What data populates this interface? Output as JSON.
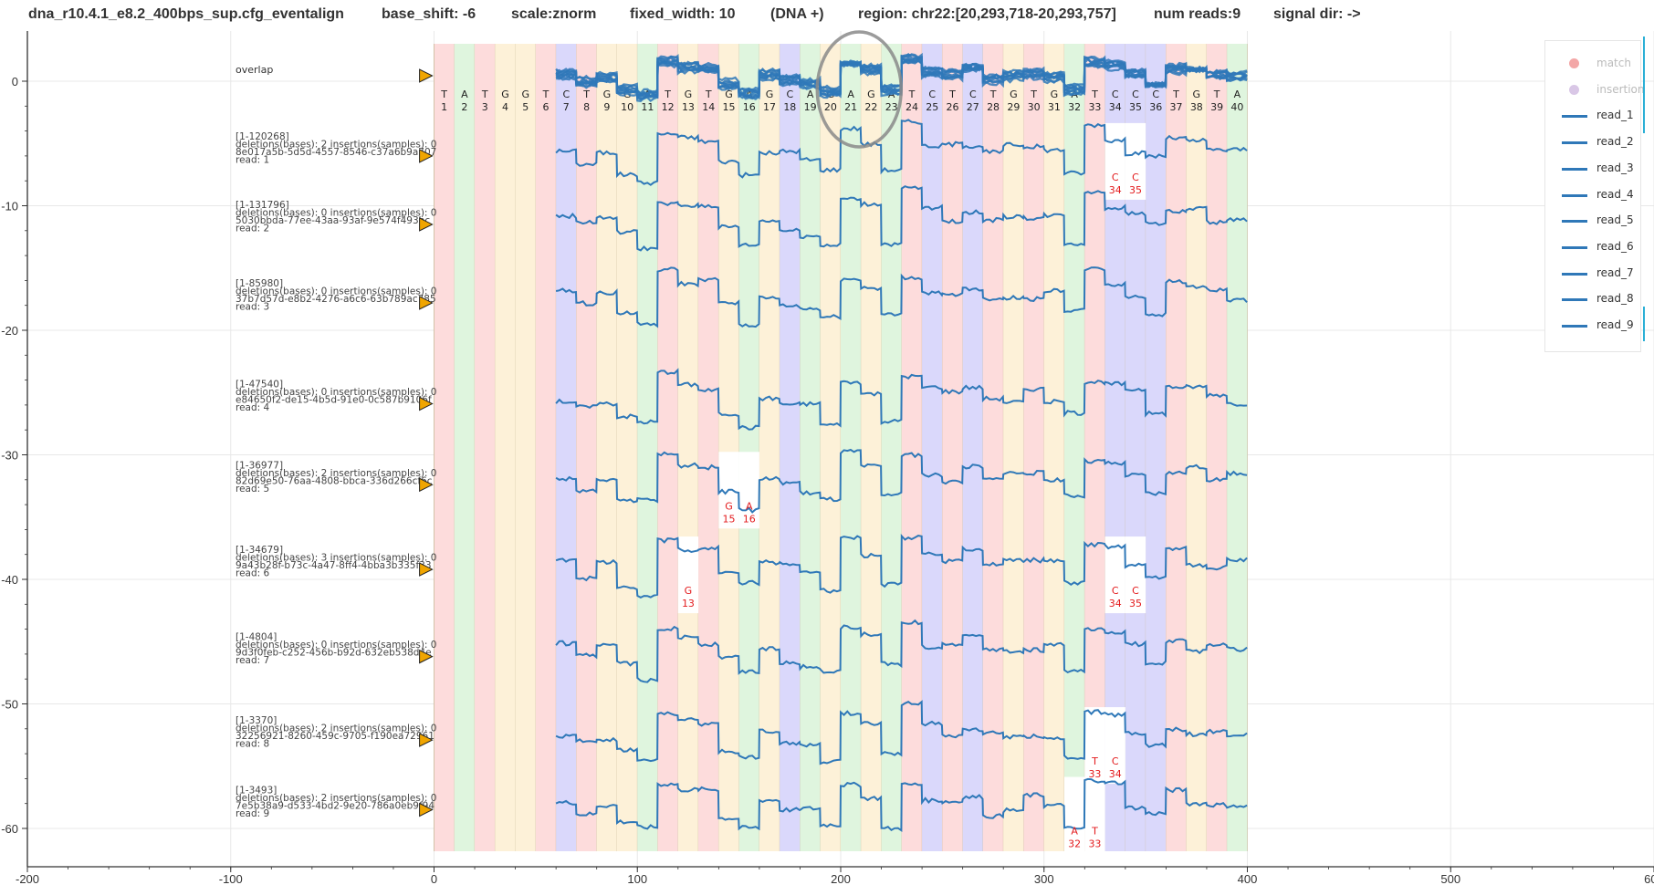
{
  "header": {
    "config": "dna_r10.4.1_e8.2_400bps_sup.cfg_eventalign",
    "base_shift": "base_shift: -6",
    "scale": "scale:znorm",
    "fixed_width": "fixed_width: 10",
    "strand": "(DNA +)",
    "region": "region: chr22:[20,293,718-20,293,757]",
    "num_reads": "num reads:9",
    "signal_dir": "signal dir: ->"
  },
  "colors": {
    "A": "#dff5de",
    "C": "#dad8fb",
    "G": "#fdf1d8",
    "T": "#fddcdc",
    "signal": "#2f78b8",
    "marker": "#f0a500",
    "insertion_text": "#e31a1c",
    "legend_match": "#f3a7a7",
    "legend_insertion": "#d9c7e6"
  },
  "chart_data": {
    "type": "line",
    "title": "",
    "xlabel": "",
    "ylabel": "",
    "xlim": [
      -200,
      600
    ],
    "ylim": [
      -62,
      3.5
    ],
    "x_ticks": [
      "-200",
      "-100",
      "0",
      "100",
      "200",
      "300",
      "400",
      "500",
      "600"
    ],
    "y_ticks": [
      "0",
      "-10",
      "-20",
      "-30",
      "-40",
      "-50",
      "-60"
    ],
    "grid": true,
    "legend_position": "top-right",
    "bases": [
      "T",
      "A",
      "T",
      "G",
      "G",
      "T",
      "C",
      "T",
      "G",
      "G",
      "A",
      "T",
      "G",
      "T",
      "G",
      "A",
      "G",
      "C",
      "A",
      "G",
      "A",
      "G",
      "A",
      "T",
      "C",
      "T",
      "C",
      "T",
      "G",
      "T",
      "G",
      "A",
      "T",
      "C",
      "C",
      "C",
      "T",
      "G",
      "T",
      "A"
    ],
    "base_positions": [
      "1",
      "2",
      "3",
      "4",
      "5",
      "6",
      "7",
      "8",
      "9",
      "10",
      "11",
      "12",
      "13",
      "14",
      "15",
      "16",
      "17",
      "18",
      "19",
      "20",
      "21",
      "22",
      "23",
      "24",
      "25",
      "26",
      "27",
      "28",
      "29",
      "30",
      "31",
      "32",
      "33",
      "34",
      "35",
      "36",
      "37",
      "38",
      "39",
      "40"
    ],
    "base_width": 10,
    "overlap": {
      "label": "overlap",
      "y": 0
    },
    "reads": [
      {
        "name": "read_1",
        "id": "[1-120268]",
        "stats": "deletions(bases): 2 insertions(samples): 0",
        "uuid": "8e017a5b-5d5d-4557-8546-c37a6b9a707",
        "label": "read: 1",
        "y": -6,
        "deletions": [
          {
            "pos": 34,
            "base": "C"
          },
          {
            "pos": 35,
            "base": "C"
          }
        ]
      },
      {
        "name": "read_2",
        "id": "[1-131796]",
        "stats": "deletions(bases): 0 insertions(samples): 0",
        "uuid": "5030bbda-77ee-43aa-93af-9e574f493bc",
        "label": "read: 2",
        "y": -11.5,
        "deletions": []
      },
      {
        "name": "read_3",
        "id": "[1-85980]",
        "stats": "deletions(bases): 0 insertions(samples): 0",
        "uuid": "37b7d57d-e8b2-4276-a6c6-63b789ac785",
        "label": "read: 3",
        "y": -17.8,
        "deletions": []
      },
      {
        "name": "read_4",
        "id": "[1-47540]",
        "stats": "deletions(bases): 0 insertions(samples): 0",
        "uuid": "e84650f2-de15-4b5d-91e0-0c587b9106f",
        "label": "read: 4",
        "y": -25.9,
        "deletions": []
      },
      {
        "name": "read_5",
        "id": "[1-36977]",
        "stats": "deletions(bases): 2 insertions(samples): 0",
        "uuid": "82d69e50-76aa-4808-bbca-336d266cf6c",
        "label": "read: 5",
        "y": -32.4,
        "deletions": [
          {
            "pos": 15,
            "base": "G"
          },
          {
            "pos": 16,
            "base": "A"
          }
        ]
      },
      {
        "name": "read_6",
        "id": "[1-34679]",
        "stats": "deletions(bases): 3 insertions(samples): 0",
        "uuid": "9a43b28f-b73c-4a47-8ff4-4bba3b335f33",
        "label": "read: 6",
        "y": -39.2,
        "deletions": [
          {
            "pos": 13,
            "base": "G"
          },
          {
            "pos": 34,
            "base": "C"
          },
          {
            "pos": 35,
            "base": "C"
          }
        ]
      },
      {
        "name": "read_7",
        "id": "[1-4804]",
        "stats": "deletions(bases): 0 insertions(samples): 0",
        "uuid": "9d3f0feb-c252-456b-b92d-632eb538d4e",
        "label": "read: 7",
        "y": -46.2,
        "deletions": []
      },
      {
        "name": "read_8",
        "id": "[1-3370]",
        "stats": "deletions(bases): 2 insertions(samples): 0",
        "uuid": "32256921-8260-459c-9705-f190ea72961",
        "label": "read: 8",
        "y": -52.9,
        "deletions": [
          {
            "pos": 33,
            "base": "T"
          },
          {
            "pos": 34,
            "base": "C"
          }
        ]
      },
      {
        "name": "read_9",
        "id": "[1-3493]",
        "stats": "deletions(bases): 2 insertions(samples): 0",
        "uuid": "7e5b38a9-d533-4bd2-9e20-786a0eb9f94",
        "label": "read: 9",
        "y": -58.5,
        "deletions": [
          {
            "pos": 32,
            "base": "A"
          },
          {
            "pos": 33,
            "base": "T"
          }
        ]
      }
    ],
    "series": [
      {
        "name": "read_1"
      },
      {
        "name": "read_2"
      },
      {
        "name": "read_3"
      },
      {
        "name": "read_4"
      },
      {
        "name": "read_5"
      },
      {
        "name": "read_6"
      },
      {
        "name": "read_7"
      },
      {
        "name": "read_8"
      },
      {
        "name": "read_9"
      }
    ],
    "base_levels": [
      0.2,
      -0.3,
      0.3,
      -0.1,
      0.0,
      0.4,
      0.3,
      -0.1,
      0.2,
      -0.5,
      -0.8,
      1.0,
      0.7,
      0.6,
      -0.2,
      -0.7,
      0.3,
      0.0,
      -0.2,
      -0.6,
      1.0,
      0.6,
      -0.5,
      1.1,
      0.4,
      0.3,
      0.6,
      0.0,
      0.2,
      0.3,
      0.2,
      -0.5,
      1.0,
      0.8,
      0.3,
      -0.2,
      0.6,
      0.4,
      0.3,
      0.2
    ]
  },
  "legend": {
    "items": [
      {
        "label": "match",
        "kind": "dot",
        "muted": true
      },
      {
        "label": "insertion",
        "kind": "dot",
        "muted": true
      },
      {
        "label": "read_1",
        "kind": "line"
      },
      {
        "label": "read_2",
        "kind": "line"
      },
      {
        "label": "read_3",
        "kind": "line"
      },
      {
        "label": "read_4",
        "kind": "line"
      },
      {
        "label": "read_5",
        "kind": "line"
      },
      {
        "label": "read_6",
        "kind": "line"
      },
      {
        "label": "read_7",
        "kind": "line"
      },
      {
        "label": "read_8",
        "kind": "line"
      },
      {
        "label": "read_9",
        "kind": "line"
      }
    ]
  }
}
